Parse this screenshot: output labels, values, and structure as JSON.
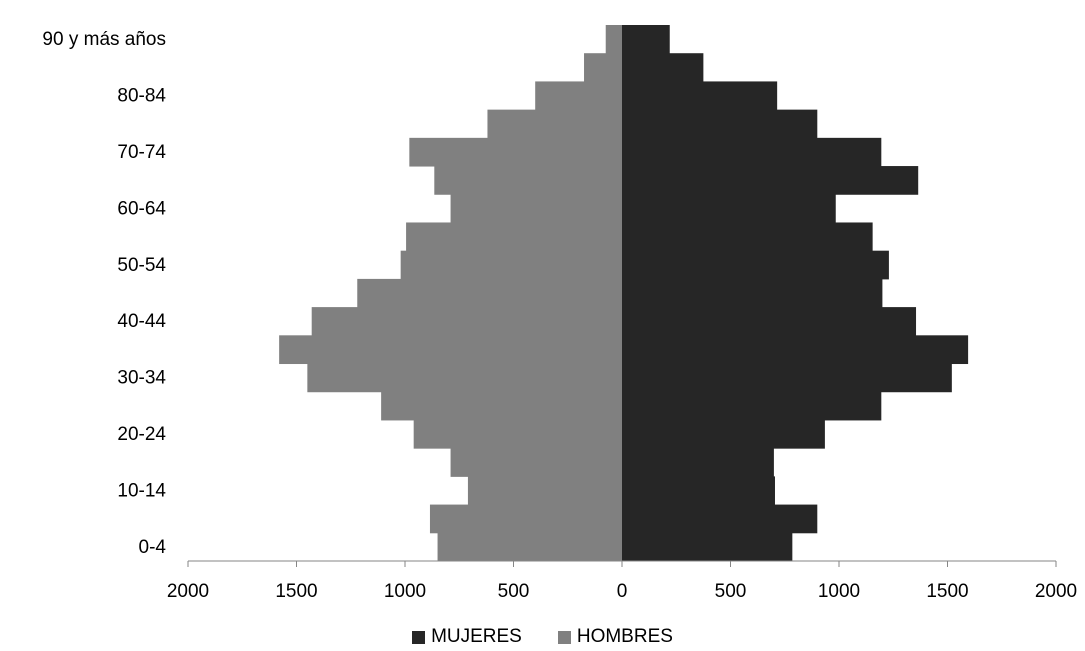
{
  "chart_data": {
    "type": "bar",
    "orientation": "horizontal",
    "subtype": "population-pyramid",
    "categories": [
      "0-4",
      "5-9",
      "10-14",
      "15-19",
      "20-24",
      "25-29",
      "30-34",
      "35-39",
      "40-44",
      "45-49",
      "50-54",
      "55-59",
      "60-64",
      "65-69",
      "70-74",
      "75-79",
      "80-84",
      "85-89",
      "90 y más años"
    ],
    "category_labels": [
      "0-4",
      "",
      "10-14",
      "",
      "20-24",
      "",
      "30-34",
      "",
      "40-44",
      "",
      "50-54",
      "",
      "60-64",
      "",
      "70-74",
      "",
      "80-84",
      "",
      "90 y más años"
    ],
    "series": [
      {
        "name": "MUJERES",
        "color": "#262626",
        "side": "right",
        "values": [
          785,
          900,
          705,
          700,
          935,
          1195,
          1520,
          1595,
          1355,
          1200,
          1230,
          1155,
          985,
          1365,
          1195,
          900,
          715,
          375,
          220
        ]
      },
      {
        "name": "HOMBRES",
        "color": "#808080",
        "side": "left",
        "values": [
          850,
          885,
          710,
          790,
          960,
          1110,
          1450,
          1580,
          1430,
          1220,
          1020,
          995,
          790,
          865,
          980,
          620,
          400,
          175,
          75
        ]
      }
    ],
    "xlim": [
      -2000,
      2000
    ],
    "xticks": [
      -2000,
      -1500,
      -1000,
      -500,
      0,
      500,
      1000,
      1500,
      2000
    ],
    "xtick_labels": [
      "2000",
      "1500",
      "1000",
      "500",
      "0",
      "500",
      "1000",
      "1500",
      "2000"
    ],
    "title": "",
    "xlabel": "",
    "ylabel": "",
    "legend": {
      "position": "bottom",
      "items": [
        "MUJERES",
        "HOMBRES"
      ]
    }
  }
}
